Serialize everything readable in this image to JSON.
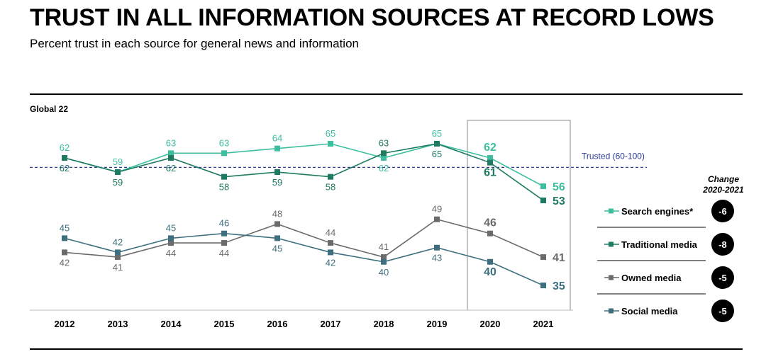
{
  "title": "TRUST IN ALL INFORMATION SOURCES AT RECORD LOWS",
  "subtitle": "Percent trust in each source for general news and information",
  "region_label": "Global 22",
  "change_header": [
    "Change",
    "2020-2021"
  ],
  "trusted_label": "Trusted (60-100)",
  "chart_data": {
    "type": "line",
    "x": [
      "2012",
      "2013",
      "2014",
      "2015",
      "2016",
      "2017",
      "2018",
      "2019",
      "2020",
      "2021"
    ],
    "highlight_years": [
      "2020",
      "2021"
    ],
    "trusted_threshold": 60,
    "series": [
      {
        "name": "Search engines*",
        "color": "#3dbf9f",
        "values": [
          62,
          59,
          63,
          63,
          64,
          65,
          62,
          65,
          62,
          56
        ],
        "change": "-6"
      },
      {
        "name": "Traditional media",
        "color": "#1f7a62",
        "values": [
          62,
          59,
          62,
          58,
          59,
          58,
          63,
          65,
          61,
          53
        ],
        "change": "-8"
      },
      {
        "name": "Owned media",
        "color": "#6b6b6b",
        "values": [
          42,
          41,
          44,
          44,
          48,
          44,
          41,
          49,
          46,
          41
        ],
        "change": "-5"
      },
      {
        "name": "Social media",
        "color": "#3d6f7f",
        "values": [
          45,
          42,
          45,
          46,
          45,
          42,
          40,
          43,
          40,
          35
        ],
        "change": "-5"
      }
    ]
  }
}
